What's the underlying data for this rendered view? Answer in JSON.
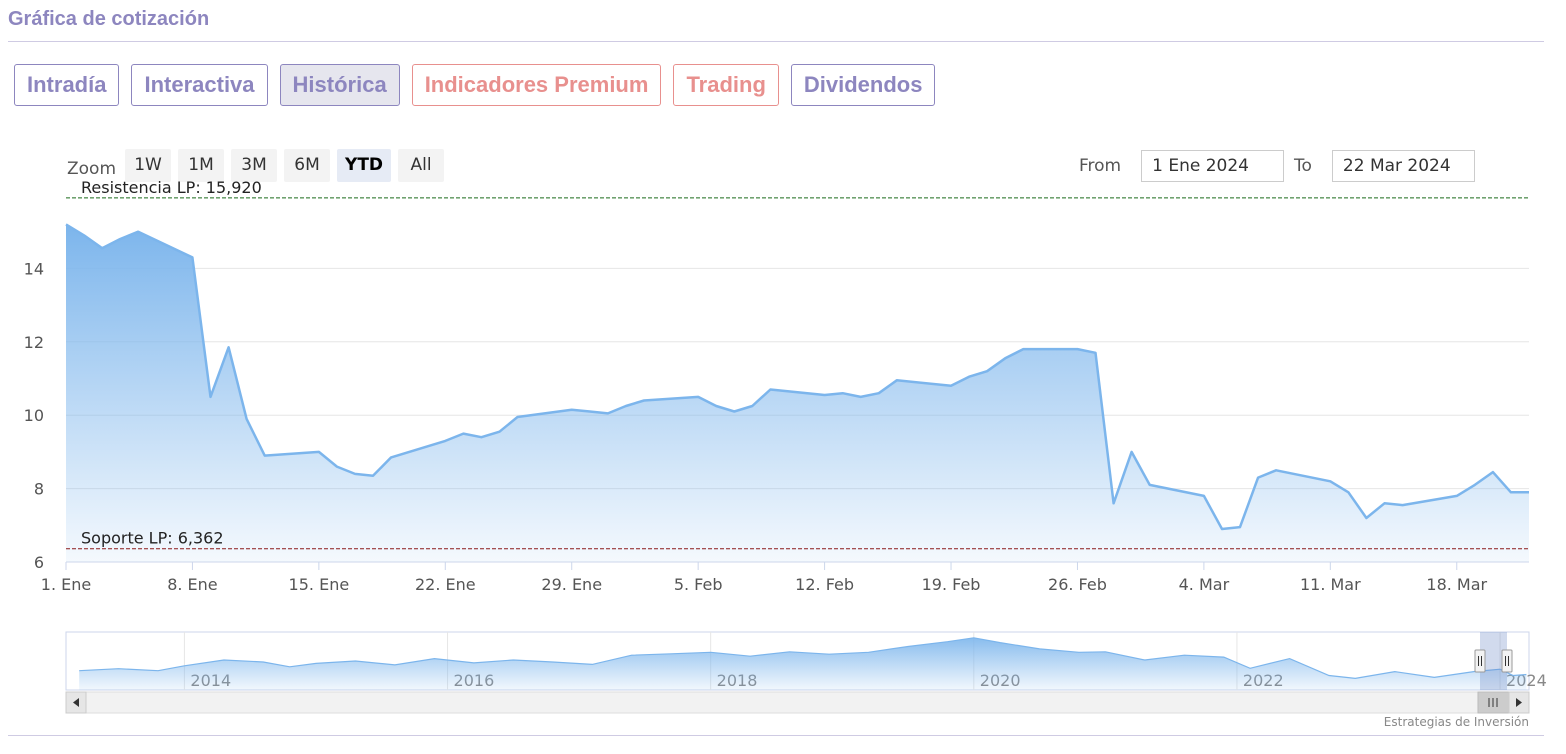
{
  "header": {
    "title": "Gráfica de cotización"
  },
  "tabs": [
    {
      "label": "Intradía"
    },
    {
      "label": "Interactiva"
    },
    {
      "label": "Histórica",
      "active": true
    },
    {
      "label": "Indicadores Premium"
    },
    {
      "label": "Trading"
    },
    {
      "label": "Dividendos"
    }
  ],
  "zoom": {
    "label": "Zoom",
    "buttons": [
      "1W",
      "1M",
      "3M",
      "6M",
      "YTD",
      "All"
    ],
    "selected": "YTD"
  },
  "range": {
    "from_label": "From",
    "from_value": "1 Ene 2024",
    "to_label": "To",
    "to_value": "22 Mar 2024"
  },
  "credit": "Estrategias de Inversión",
  "colors": {
    "accent": "#8d86bf",
    "accent_red": "#e8908e",
    "series_line": "#7cb5ec",
    "resistance": "#1a6b1a",
    "support": "#8b1a1a"
  },
  "chart_data": {
    "type": "area",
    "title": "",
    "xlabel": "",
    "ylabel": "",
    "x_tick_labels": [
      "1. Ene",
      "8. Ene",
      "15. Ene",
      "22. Ene",
      "29. Ene",
      "5. Feb",
      "12. Feb",
      "19. Feb",
      "26. Feb",
      "4. Mar",
      "11. Mar",
      "18. Mar"
    ],
    "y_tick_labels": [
      "6",
      "8",
      "10",
      "12",
      "14"
    ],
    "ylim": [
      6,
      16
    ],
    "xlim": [
      "2024-01-01",
      "2024-03-22"
    ],
    "grid": true,
    "series": [
      {
        "values": [
          [
            "2024-01-01",
            15.2
          ],
          [
            "2024-01-02",
            14.9
          ],
          [
            "2024-01-03",
            14.55
          ],
          [
            "2024-01-04",
            14.8
          ],
          [
            "2024-01-05",
            15.0
          ],
          [
            "2024-01-08",
            14.3
          ],
          [
            "2024-01-09",
            10.5
          ],
          [
            "2024-01-10",
            11.85
          ],
          [
            "2024-01-11",
            9.9
          ],
          [
            "2024-01-12",
            8.9
          ],
          [
            "2024-01-15",
            9.0
          ],
          [
            "2024-01-16",
            8.6
          ],
          [
            "2024-01-17",
            8.4
          ],
          [
            "2024-01-18",
            8.35
          ],
          [
            "2024-01-19",
            8.85
          ],
          [
            "2024-01-22",
            9.3
          ],
          [
            "2024-01-23",
            9.5
          ],
          [
            "2024-01-24",
            9.4
          ],
          [
            "2024-01-25",
            9.55
          ],
          [
            "2024-01-26",
            9.95
          ],
          [
            "2024-01-29",
            10.15
          ],
          [
            "2024-01-30",
            10.1
          ],
          [
            "2024-01-31",
            10.05
          ],
          [
            "2024-02-01",
            10.25
          ],
          [
            "2024-02-02",
            10.4
          ],
          [
            "2024-02-05",
            10.5
          ],
          [
            "2024-02-06",
            10.25
          ],
          [
            "2024-02-07",
            10.1
          ],
          [
            "2024-02-08",
            10.25
          ],
          [
            "2024-02-09",
            10.7
          ],
          [
            "2024-02-12",
            10.55
          ],
          [
            "2024-02-13",
            10.6
          ],
          [
            "2024-02-14",
            10.5
          ],
          [
            "2024-02-15",
            10.6
          ],
          [
            "2024-02-16",
            10.95
          ],
          [
            "2024-02-19",
            10.8
          ],
          [
            "2024-02-20",
            11.05
          ],
          [
            "2024-02-21",
            11.2
          ],
          [
            "2024-02-22",
            11.55
          ],
          [
            "2024-02-23",
            11.8
          ],
          [
            "2024-02-26",
            11.8
          ],
          [
            "2024-02-27",
            11.7
          ],
          [
            "2024-02-28",
            7.6
          ],
          [
            "2024-02-29",
            9.0
          ],
          [
            "2024-03-01",
            8.1
          ],
          [
            "2024-03-04",
            7.8
          ],
          [
            "2024-03-05",
            6.9
          ],
          [
            "2024-03-06",
            6.95
          ],
          [
            "2024-03-07",
            8.3
          ],
          [
            "2024-03-08",
            8.5
          ],
          [
            "2024-03-11",
            8.2
          ],
          [
            "2024-03-12",
            7.9
          ],
          [
            "2024-03-13",
            7.2
          ],
          [
            "2024-03-14",
            7.6
          ],
          [
            "2024-03-15",
            7.55
          ],
          [
            "2024-03-18",
            7.8
          ],
          [
            "2024-03-19",
            8.1
          ],
          [
            "2024-03-20",
            8.45
          ],
          [
            "2024-03-21",
            7.9
          ]
        ]
      }
    ],
    "plot_lines": [
      {
        "label": "Resistencia LP: 15,920",
        "value": 15.92,
        "color": "#1a6b1a"
      },
      {
        "label": "Soporte LP: 6,362",
        "value": 6.362,
        "color": "#8b1a1a"
      }
    ],
    "navigator": {
      "x_tick_labels": [
        "2014",
        "2016",
        "2018",
        "2020",
        "2022",
        "2024"
      ],
      "xlim": [
        2013.1,
        2024.22
      ],
      "selected_range": [
        "2024-01-01",
        "2024-03-22"
      ],
      "values": [
        [
          2013.2,
          9.0
        ],
        [
          2013.5,
          9.4
        ],
        [
          2013.8,
          9.0
        ],
        [
          2014.0,
          10.0
        ],
        [
          2014.3,
          11.2
        ],
        [
          2014.6,
          10.8
        ],
        [
          2014.8,
          9.8
        ],
        [
          2015.0,
          10.5
        ],
        [
          2015.3,
          11.0
        ],
        [
          2015.6,
          10.2
        ],
        [
          2015.9,
          11.5
        ],
        [
          2016.2,
          10.6
        ],
        [
          2016.5,
          11.2
        ],
        [
          2016.8,
          10.8
        ],
        [
          2017.1,
          10.3
        ],
        [
          2017.4,
          12.2
        ],
        [
          2017.7,
          12.5
        ],
        [
          2018.0,
          12.8
        ],
        [
          2018.3,
          12.0
        ],
        [
          2018.6,
          12.9
        ],
        [
          2018.9,
          12.4
        ],
        [
          2019.2,
          12.8
        ],
        [
          2019.5,
          14.0
        ],
        [
          2019.8,
          15.0
        ],
        [
          2020.0,
          15.8
        ],
        [
          2020.2,
          14.8
        ],
        [
          2020.5,
          13.5
        ],
        [
          2020.8,
          12.8
        ],
        [
          2021.0,
          12.9
        ],
        [
          2021.3,
          11.2
        ],
        [
          2021.6,
          12.2
        ],
        [
          2021.9,
          11.8
        ],
        [
          2022.1,
          9.5
        ],
        [
          2022.4,
          11.5
        ],
        [
          2022.7,
          8.0
        ],
        [
          2022.9,
          7.4
        ],
        [
          2023.2,
          8.8
        ],
        [
          2023.5,
          7.6
        ],
        [
          2023.8,
          8.8
        ],
        [
          2024.0,
          9.3
        ],
        [
          2024.1,
          8.0
        ],
        [
          2024.2,
          8.2
        ]
      ]
    }
  }
}
